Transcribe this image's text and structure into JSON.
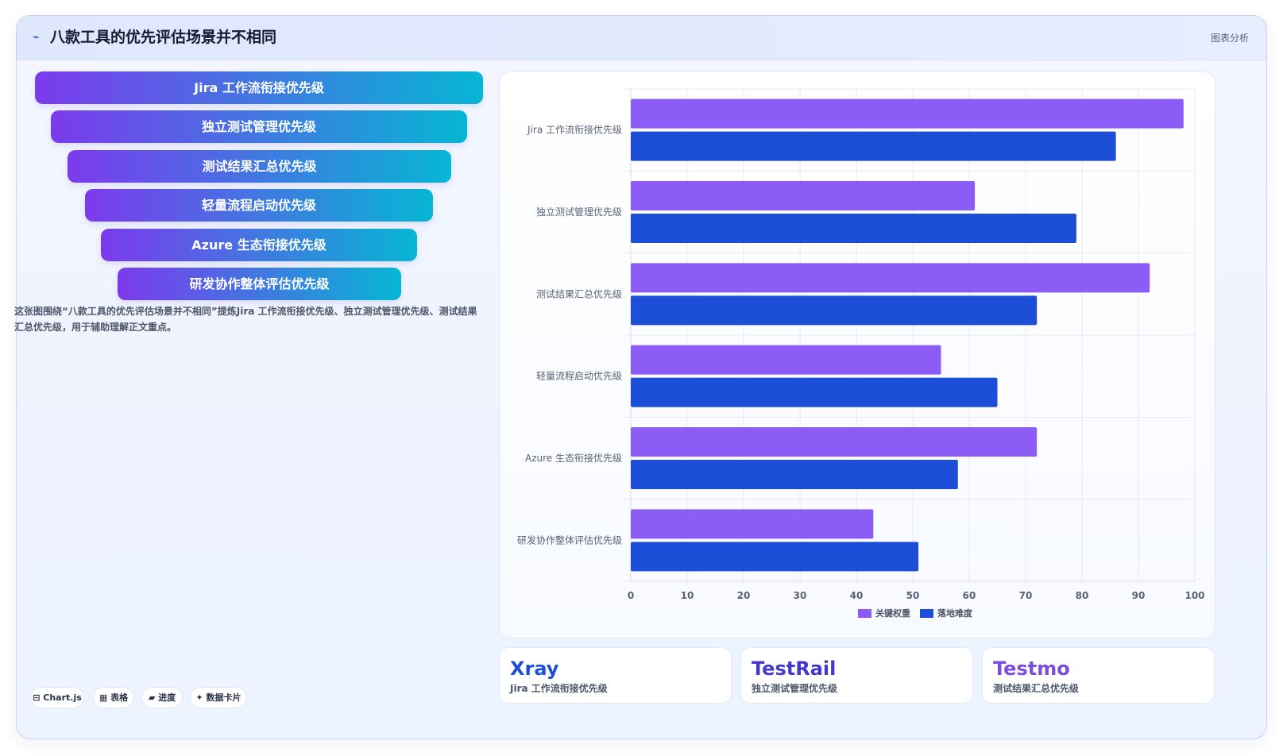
{
  "header": {
    "icon": "chart-swoosh-icon",
    "title": "八款工具的优先评估场景并不相同",
    "tag": "图表分析"
  },
  "funnel": {
    "items": [
      "Jira 工作流衔接优先级",
      "独立测试管理优先级",
      "测试结果汇总优先级",
      "轻量流程启动优先级",
      "Azure 生态衔接优先级",
      "研发协作整体评估优先级"
    ]
  },
  "description": "这张图围绕“八款工具的优先评估场景并不相同”提炼Jira 工作流衔接优先级、独立测试管理优先级、测试结果汇总优先级，用于辅助理解正文重点。",
  "chips": [
    {
      "icon": "chart-icon",
      "label": "⊟ Chart.js"
    },
    {
      "icon": "table-icon",
      "label": "▦ 表格"
    },
    {
      "icon": "progress-icon",
      "label": "▰ 进度"
    },
    {
      "icon": "card-icon",
      "label": "✦ 数据卡片"
    }
  ],
  "chart_data": {
    "type": "bar",
    "orientation": "horizontal",
    "categories": [
      "Jira 工作流衔接优先级",
      "独立测试管理优先级",
      "测试结果汇总优先级",
      "轻量流程启动优先级",
      "Azure 生态衔接优先级",
      "研发协作整体评估优先级"
    ],
    "series": [
      {
        "name": "关键权重",
        "color": "#8b5cf6",
        "values": [
          98,
          61,
          92,
          55,
          72,
          43
        ]
      },
      {
        "name": "落地难度",
        "color": "#1d4ed8",
        "values": [
          86,
          79,
          72,
          65,
          58,
          51
        ]
      }
    ],
    "xlim": [
      0,
      100
    ],
    "xticks": [
      0,
      10,
      20,
      30,
      40,
      50,
      60,
      70,
      80,
      90,
      100
    ],
    "grid": true,
    "legend": "bottom"
  },
  "stats": [
    {
      "value": "Xray",
      "label": "Jira 工作流衔接优先级",
      "color": "#1d4ed8"
    },
    {
      "value": "TestRail",
      "label": "独立测试管理优先级",
      "color": "#4338ca"
    },
    {
      "value": "Testmo",
      "label": "测试结果汇总优先级",
      "color": "#7c4ddb"
    }
  ]
}
